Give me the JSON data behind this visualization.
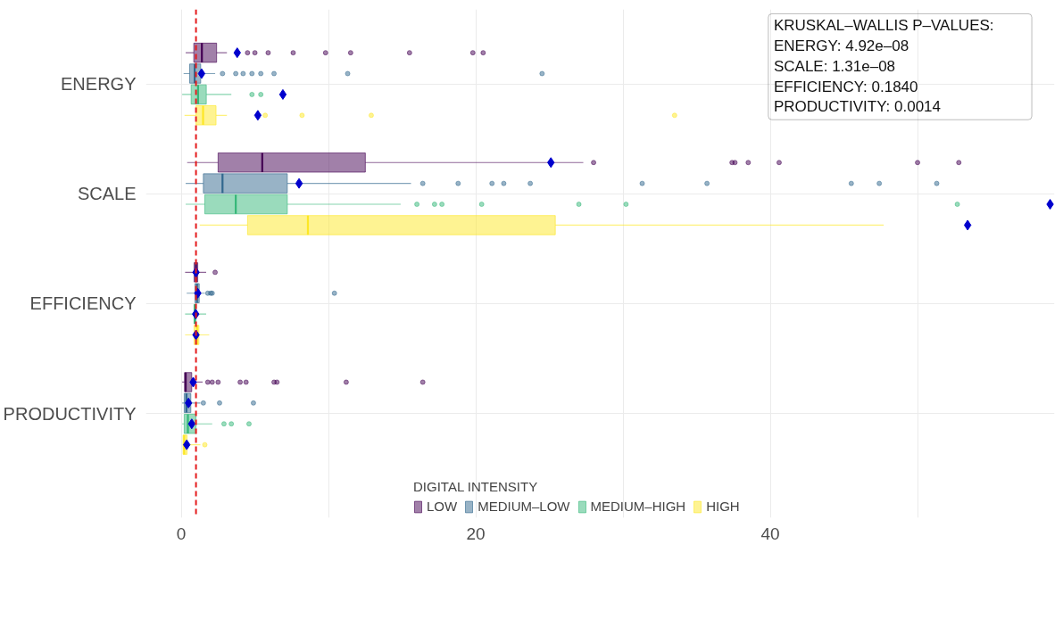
{
  "chart_data": {
    "type": "box",
    "orientation": "horizontal",
    "categories": [
      "ENERGY",
      "SCALE",
      "EFFICIENCY",
      "PRODUCTIVITY"
    ],
    "legend_title": "DIGITAL INTENSITY",
    "series": [
      {
        "name": "LOW",
        "color": "#440154",
        "boxes": [
          {
            "low": 0.3,
            "q1": 0.85,
            "median": 1.4,
            "q3": 2.4,
            "high": 3.1,
            "mean": 3.8,
            "outliers": [
              4.5,
              5.0,
              5.9,
              7.6,
              9.8,
              11.5,
              15.5,
              19.8,
              20.5
            ]
          },
          {
            "low": 0.4,
            "q1": 2.5,
            "median": 5.5,
            "q3": 12.5,
            "high": 27.3,
            "mean": 25.1,
            "outliers": [
              28.0,
              37.4,
              37.6,
              38.5,
              40.6,
              50.0,
              52.8
            ]
          },
          {
            "low": 0.26,
            "q1": 0.87,
            "median": 1.0,
            "q3": 1.12,
            "high": 1.69,
            "mean": 1.0,
            "outliers": [
              2.3
            ]
          },
          {
            "low": 0.06,
            "q1": 0.22,
            "median": 0.3,
            "q3": 0.71,
            "high": 1.45,
            "mean": 0.81,
            "outliers": [
              1.8,
              2.1,
              2.5,
              4.0,
              4.4,
              6.3,
              6.5,
              11.2,
              16.4
            ]
          }
        ]
      },
      {
        "name": "MEDIUM–LOW",
        "color": "#31688e",
        "boxes": [
          {
            "low": 0.16,
            "q1": 0.57,
            "median": 0.91,
            "q3": 1.32,
            "high": 2.3,
            "mean": 1.38,
            "outliers": [
              2.8,
              3.7,
              4.2,
              4.8,
              5.4,
              6.3,
              11.3,
              24.5
            ]
          },
          {
            "low": 0.3,
            "q1": 1.5,
            "median": 2.8,
            "q3": 7.2,
            "high": 15.6,
            "mean": 8.0,
            "outliers": [
              16.4,
              18.8,
              21.1,
              21.9,
              23.7,
              31.3,
              35.7,
              45.5,
              47.4,
              51.3
            ]
          },
          {
            "low": 0.37,
            "q1": 0.93,
            "median": 1.07,
            "q3": 1.22,
            "high": 1.6,
            "mean": 1.12,
            "outliers": [
              1.8,
              2.0,
              2.1,
              10.4
            ]
          },
          {
            "low": 0.06,
            "q1": 0.2,
            "median": 0.35,
            "q3": 0.65,
            "high": 1.3,
            "mean": 0.49,
            "outliers": [
              1.5,
              2.6,
              4.9
            ]
          }
        ]
      },
      {
        "name": "MEDIUM–HIGH",
        "color": "#35b779",
        "boxes": [
          {
            "low": 0.06,
            "q1": 0.67,
            "median": 1.14,
            "q3": 1.7,
            "high": 3.4,
            "mean": 6.9,
            "outliers": [
              4.8,
              5.4
            ]
          },
          {
            "low": 0.3,
            "q1": 1.6,
            "median": 3.7,
            "q3": 7.2,
            "high": 14.9,
            "mean": 59.0,
            "outliers": [
              16.0,
              17.2,
              17.7,
              20.4,
              27.0,
              30.2,
              52.7
            ]
          },
          {
            "low": 0.26,
            "q1": 0.87,
            "median": 0.92,
            "q3": 1.0,
            "high": 1.69,
            "mean": 0.98
          },
          {
            "low": 0.06,
            "q1": 0.2,
            "median": 0.45,
            "q3": 1.0,
            "high": 2.1,
            "mean": 0.71,
            "outliers": [
              2.9,
              3.4,
              4.6
            ]
          }
        ]
      },
      {
        "name": "HIGH",
        "color": "#fde725",
        "boxes": [
          {
            "low": 0.22,
            "q1": 1.0,
            "median": 1.48,
            "q3": 2.36,
            "high": 3.1,
            "mean": 5.2,
            "outliers": [
              5.7,
              8.2,
              12.9,
              33.5
            ]
          },
          {
            "low": 1.25,
            "q1": 4.5,
            "median": 8.6,
            "q3": 25.4,
            "high": 47.7,
            "mean": 53.4
          },
          {
            "low": 0.26,
            "q1": 0.87,
            "median": 1.07,
            "q3": 1.2,
            "high": 1.9,
            "mean": 1.0
          },
          {
            "low": 0.1,
            "q1": 0.12,
            "median": 0.2,
            "q3": 0.39,
            "high": 1.3,
            "mean": 0.37,
            "outliers": [
              1.6
            ]
          }
        ]
      }
    ],
    "xlim": [
      -2.4,
      59.3
    ],
    "xticks": [
      0,
      {
        "value": 10,
        "label": null
      },
      20,
      {
        "value": 30,
        "label": null
      },
      40,
      {
        "value": 50,
        "label": null
      }
    ],
    "ref_lines": [
      {
        "axis": "x",
        "value": 1,
        "color": "#e41a1c",
        "line_style": "dashed"
      }
    ],
    "annotations": [
      "KRUSKAL–WALLIS P–VALUES:",
      "ENERGY: 4.92e–08",
      "SCALE: 1.31e–08",
      "EFFICIENCY: 0.1840",
      "PRODUCTIVITY: 0.0014"
    ],
    "grid": true,
    "legend": "bottom"
  }
}
